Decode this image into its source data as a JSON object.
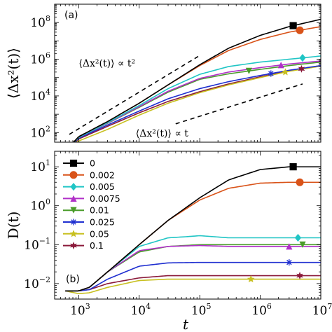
{
  "colors": {
    "0": "#000000",
    "0.002": "#d95319",
    "0.005": "#20c5c5",
    "0.0075": "#b030c8",
    "0.01": "#4a9c2a",
    "0.025": "#1f2fd0",
    "0.05": "#c8c020",
    "0.1": "#8b1a3a"
  },
  "chart_data": [
    {
      "type": "line",
      "panel_label": "(a)",
      "ylabel": "⟨Δx²(t)⟩",
      "xlabel": "",
      "xscale": "log",
      "yscale": "log",
      "xlim": [
        400,
        10000000
      ],
      "ylim": [
        30,
        1000000000
      ],
      "x_ticks": [
        {
          "v": 1000,
          "base": "10",
          "exp": "3"
        },
        {
          "v": 10000,
          "base": "10",
          "exp": "4"
        },
        {
          "v": 100000,
          "base": "10",
          "exp": "5"
        },
        {
          "v": 1000000,
          "base": "10",
          "exp": "6"
        },
        {
          "v": 10000000,
          "base": "10",
          "exp": "7"
        }
      ],
      "y_ticks": [
        {
          "v": 100,
          "base": "10",
          "exp": "2"
        },
        {
          "v": 10000,
          "base": "10",
          "exp": "4"
        },
        {
          "v": 1000000,
          "base": "10",
          "exp": "6"
        },
        {
          "v": 100000000,
          "base": "10",
          "exp": "8"
        }
      ],
      "x_tick_labels_shown": false,
      "annotations": [
        {
          "text": "⟨Δx²(t)⟩ ∝ t²",
          "x": 8000,
          "y": 400000
        },
        {
          "text": "⟨Δx²(t)⟩ ∝ t",
          "x": 70000,
          "y": 60
        }
      ],
      "reference_lines": [
        {
          "x": [
            700,
            100000
          ],
          "y": [
            80,
            1600000
          ]
        },
        {
          "x": [
            40000,
            5000000
          ],
          "y": [
            300,
            45000
          ]
        }
      ],
      "series": [
        {
          "name": "0",
          "marker": "square",
          "marker_x": [
            3500000
          ],
          "x": [
            600,
            1000,
            3000,
            10000,
            30000,
            100000,
            300000,
            1000000,
            3000000,
            10000000
          ],
          "y": [
            10,
            60,
            400,
            4000,
            40000,
            500000,
            4000000,
            20000000,
            60000000,
            150000000
          ]
        },
        {
          "name": "0.002",
          "marker": "circle",
          "marker_x": [
            4500000
          ],
          "x": [
            600,
            1000,
            3000,
            10000,
            30000,
            100000,
            300000,
            1000000,
            3000000,
            10000000
          ],
          "y": [
            10,
            60,
            400,
            4000,
            40000,
            450000,
            3000000,
            12000000,
            30000000,
            60000000
          ]
        },
        {
          "name": "0.005",
          "marker": "diamond",
          "marker_x": [
            5000000
          ],
          "x": [
            600,
            1000,
            3000,
            10000,
            30000,
            100000,
            300000,
            1000000,
            3000000,
            10000000
          ],
          "y": [
            10,
            55,
            350,
            3000,
            25000,
            150000,
            400000,
            700000,
            1000000,
            1500000
          ]
        },
        {
          "name": "0.0075",
          "marker": "triangle-up",
          "marker_x": [
            2200000
          ],
          "x": [
            600,
            1000,
            3000,
            10000,
            30000,
            100000,
            300000,
            1000000,
            3000000,
            10000000
          ],
          "y": [
            10,
            55,
            330,
            2600,
            18000,
            90000,
            200000,
            350000,
            550000,
            800000
          ]
        },
        {
          "name": "0.01",
          "marker": "triangle-down",
          "marker_x": [
            650000
          ],
          "x": [
            600,
            1000,
            3000,
            10000,
            30000,
            100000,
            300000,
            1000000,
            3000000,
            10000000
          ],
          "y": [
            10,
            55,
            320,
            2400,
            16000,
            80000,
            160000,
            280000,
            450000,
            700000
          ]
        },
        {
          "name": "0.025",
          "marker": "asterisk",
          "marker_x": [
            1500000
          ],
          "x": [
            600,
            1000,
            3000,
            10000,
            30000,
            100000,
            300000,
            1000000,
            3000000,
            10000000
          ],
          "y": [
            10,
            50,
            260,
            1500,
            7000,
            25000,
            60000,
            130000,
            250000,
            450000
          ]
        },
        {
          "name": "0.05",
          "marker": "star",
          "marker_x": [
            2600000
          ],
          "x": [
            600,
            1000,
            3000,
            10000,
            30000,
            100000,
            300000,
            1000000,
            3000000,
            10000000
          ],
          "y": [
            10,
            35,
            150,
            900,
            4000,
            15000,
            40000,
            100000,
            220000,
            420000
          ]
        },
        {
          "name": "0.1",
          "marker": "hexagram",
          "marker_x": [
            4800000
          ],
          "x": [
            600,
            1000,
            3000,
            10000,
            30000,
            100000,
            300000,
            1000000,
            3000000,
            10000000
          ],
          "y": [
            10,
            45,
            220,
            1200,
            5000,
            17000,
            45000,
            110000,
            230000,
            450000
          ]
        }
      ]
    },
    {
      "type": "line",
      "panel_label": "(b)",
      "ylabel": "D(t)",
      "xlabel": "t",
      "xscale": "log",
      "yscale": "log",
      "xlim": [
        400,
        10000000
      ],
      "ylim": [
        0.004,
        25
      ],
      "x_ticks": [
        {
          "v": 1000,
          "base": "10",
          "exp": "3"
        },
        {
          "v": 10000,
          "base": "10",
          "exp": "4"
        },
        {
          "v": 100000,
          "base": "10",
          "exp": "5"
        },
        {
          "v": 1000000,
          "base": "10",
          "exp": "6"
        },
        {
          "v": 10000000,
          "base": "10",
          "exp": "7"
        }
      ],
      "y_ticks": [
        {
          "v": 0.01,
          "base": "10",
          "exp": "−2"
        },
        {
          "v": 0.1,
          "base": "10",
          "exp": "−1"
        },
        {
          "v": 1,
          "base": "10",
          "exp": "0"
        },
        {
          "v": 10,
          "base": "10",
          "exp": "1"
        }
      ],
      "x_tick_labels_shown": true,
      "legend": {
        "placement": "upper-left",
        "entries": [
          "0",
          "0.002",
          "0.005",
          "0.0075",
          "0.01",
          "0.025",
          "0.05",
          "0.1"
        ]
      },
      "series": [
        {
          "name": "0",
          "marker": "square",
          "marker_x": [
            3500000
          ],
          "x": [
            600,
            1000,
            1500,
            3000,
            10000,
            30000,
            100000,
            300000,
            1000000,
            3000000,
            10000000
          ],
          "y": [
            0.0065,
            0.0065,
            0.008,
            0.02,
            0.1,
            0.42,
            1.6,
            4.6,
            8.5,
            10,
            10
          ]
        },
        {
          "name": "0.002",
          "marker": "circle",
          "marker_x": [
            4500000
          ],
          "x": [
            600,
            1000,
            1500,
            3000,
            10000,
            30000,
            100000,
            300000,
            1000000,
            3000000,
            10000000
          ],
          "y": [
            0.0065,
            0.0065,
            0.008,
            0.02,
            0.1,
            0.42,
            1.4,
            2.8,
            3.8,
            4.0,
            4.0
          ]
        },
        {
          "name": "0.005",
          "marker": "diamond",
          "marker_x": [
            4200000
          ],
          "x": [
            600,
            1000,
            1500,
            3000,
            10000,
            30000,
            60000,
            100000,
            300000,
            1000000,
            3000000,
            10000000
          ],
          "y": [
            0.0065,
            0.0065,
            0.008,
            0.02,
            0.09,
            0.15,
            0.16,
            0.17,
            0.15,
            0.15,
            0.15,
            0.15
          ]
        },
        {
          "name": "0.0075",
          "marker": "triangle-up",
          "marker_x": [
            3000000
          ],
          "x": [
            600,
            1000,
            1500,
            3000,
            10000,
            30000,
            100000,
            300000,
            1000000,
            3000000,
            10000000
          ],
          "y": [
            0.0065,
            0.0065,
            0.008,
            0.02,
            0.07,
            0.09,
            0.095,
            0.09,
            0.09,
            0.09,
            0.09
          ]
        },
        {
          "name": "0.01",
          "marker": "triangle-down",
          "marker_x": [
            5000000
          ],
          "x": [
            600,
            1000,
            1500,
            3000,
            10000,
            30000,
            100000,
            300000,
            1000000,
            3000000,
            10000000
          ],
          "y": [
            0.0065,
            0.0065,
            0.008,
            0.02,
            0.065,
            0.09,
            0.1,
            0.1,
            0.1,
            0.1,
            0.1
          ]
        },
        {
          "name": "0.025",
          "marker": "asterisk",
          "marker_x": [
            3000000
          ],
          "x": [
            600,
            1000,
            1500,
            3000,
            10000,
            30000,
            100000,
            300000,
            1000000,
            3000000,
            10000000
          ],
          "y": [
            0.0065,
            0.0065,
            0.007,
            0.013,
            0.028,
            0.034,
            0.035,
            0.035,
            0.035,
            0.035,
            0.035
          ]
        },
        {
          "name": "0.05",
          "marker": "star",
          "marker_x": [
            700000
          ],
          "x": [
            600,
            1000,
            1500,
            3000,
            10000,
            30000,
            100000,
            300000,
            1000000,
            3000000,
            10000000
          ],
          "y": [
            0.0065,
            0.0055,
            0.0058,
            0.008,
            0.012,
            0.013,
            0.013,
            0.013,
            0.013,
            0.013,
            0.013
          ]
        },
        {
          "name": "0.1",
          "marker": "hexagram",
          "marker_x": [
            4500000
          ],
          "x": [
            600,
            1000,
            1500,
            3000,
            10000,
            30000,
            100000,
            300000,
            1000000,
            3000000,
            10000000
          ],
          "y": [
            0.0065,
            0.0065,
            0.007,
            0.01,
            0.014,
            0.016,
            0.016,
            0.016,
            0.016,
            0.016,
            0.016
          ]
        }
      ]
    }
  ]
}
